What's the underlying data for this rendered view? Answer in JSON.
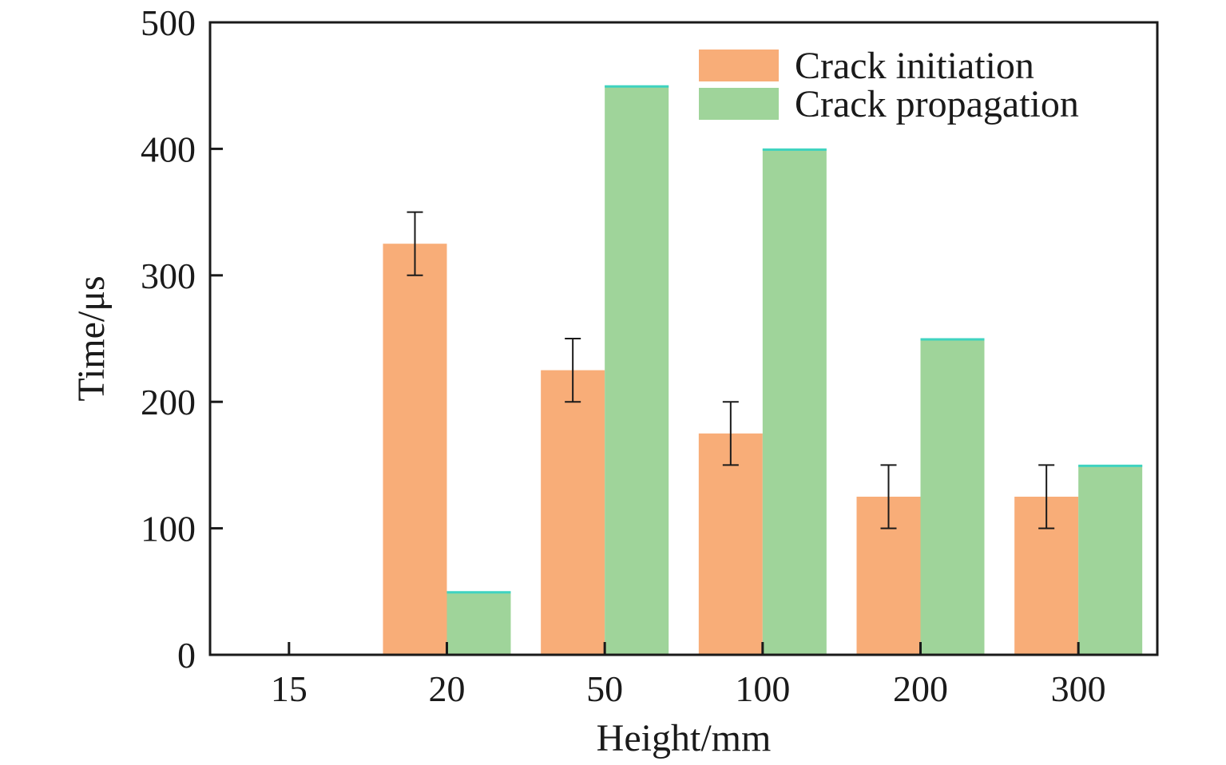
{
  "chart_data": {
    "type": "bar",
    "xlabel": "Height/mm",
    "ylabel": "Time/μs",
    "categories": [
      "15",
      "20",
      "50",
      "100",
      "200",
      "300"
    ],
    "ylim": [
      0,
      500
    ],
    "yticks": [
      0,
      100,
      200,
      300,
      400,
      500
    ],
    "grid": false,
    "legend_position": "top-right",
    "series": [
      {
        "name": "Crack initiation",
        "color": "#F8AD78",
        "values": [
          null,
          325,
          225,
          175,
          125,
          125
        ],
        "error": [
          null,
          25,
          25,
          25,
          25,
          25
        ]
      },
      {
        "name": "Crack propagation",
        "color": "#9FD49A",
        "edge_color": "#3FD3C0",
        "values": [
          null,
          50,
          450,
          400,
          250,
          150
        ]
      }
    ]
  }
}
